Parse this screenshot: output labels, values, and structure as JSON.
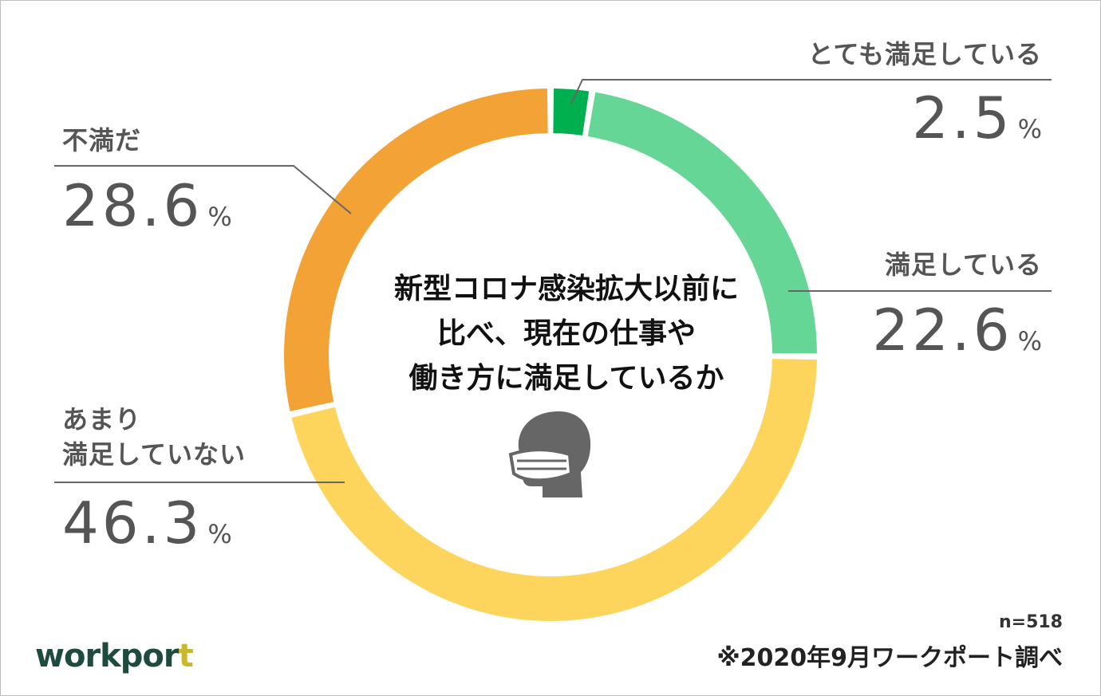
{
  "chart_data": {
    "type": "pie",
    "variant": "donut",
    "title": "新型コロナ感染拡大以前に比べ、現在の仕事や働き方に満足しているか",
    "title_lines": [
      "新型コロナ感染拡大以前に",
      "比べ、現在の仕事や",
      "働き方に満足しているか"
    ],
    "slices": [
      {
        "label": "とても満足している",
        "value": 2.5,
        "color": "#00b04f"
      },
      {
        "label": "満足している",
        "value": 22.6,
        "color": "#66d696"
      },
      {
        "label": "あまり満足していない",
        "value": 46.3,
        "color": "#fdd55c"
      },
      {
        "label": "不満だ",
        "value": 28.6,
        "color": "#f3a235"
      }
    ],
    "legend": "callout labels"
  },
  "labels": {
    "very_satisfied": {
      "category": "とても満足している",
      "value": "2.5",
      "unit": "%"
    },
    "satisfied": {
      "category": "満足している",
      "value": "22.6",
      "unit": "%"
    },
    "not_very_satisfied": {
      "category_line1": "あまり",
      "category_line2": "満足していない",
      "value": "46.3",
      "unit": "%"
    },
    "dissatisfied": {
      "category": "不満だ",
      "value": "28.6",
      "unit": "%"
    }
  },
  "footer": {
    "sample_size": "n=518",
    "source": "※2020年9月ワークポート調べ"
  },
  "logo": {
    "text_main": "workpor",
    "text_accent": "t"
  },
  "icon": "masked-person-icon"
}
